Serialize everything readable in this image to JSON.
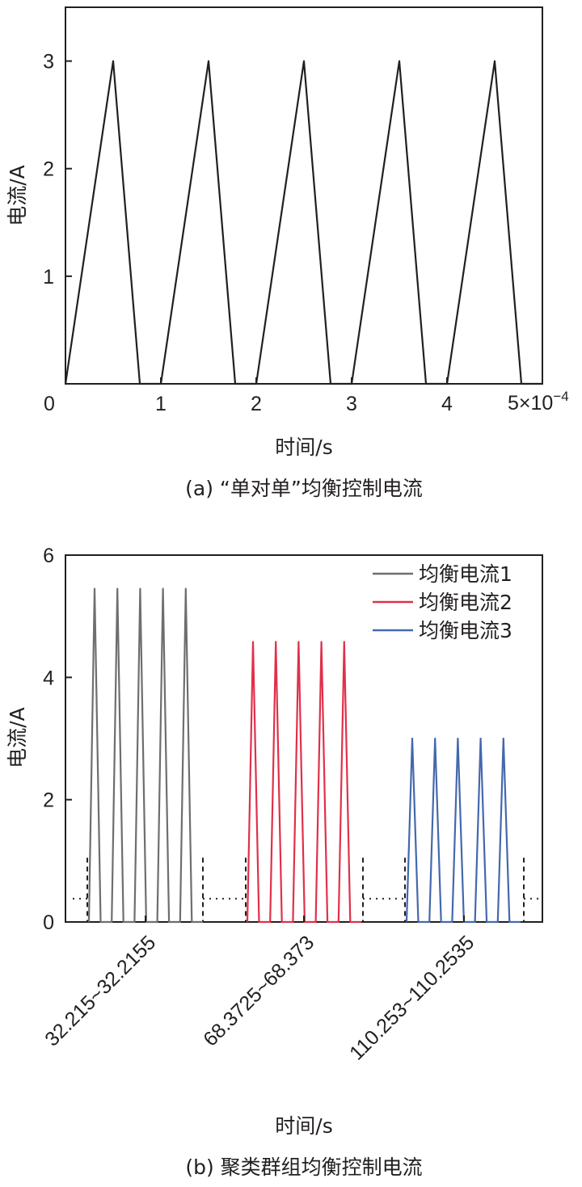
{
  "chart_data": [
    {
      "type": "line",
      "caption": "(a) “单对单”均衡控制电流",
      "xlabel": "时间/s",
      "ylabel": "电流/A",
      "xlim": [
        0,
        5
      ],
      "ylim": [
        0,
        3.5
      ],
      "x_ticks": [
        "0",
        "1",
        "2",
        "3",
        "4"
      ],
      "x_multiplier": "5×10",
      "x_multiplier_exp": "−4",
      "y_ticks": [
        1,
        2,
        3
      ],
      "grid": false,
      "series": [
        {
          "color": "#231f20",
          "points": [
            [
              0,
              0
            ],
            [
              0.5,
              3
            ],
            [
              0.78,
              0
            ],
            [
              1,
              0
            ],
            [
              1.5,
              3
            ],
            [
              1.78,
              0
            ],
            [
              2,
              0
            ],
            [
              2.5,
              3
            ],
            [
              2.78,
              0
            ],
            [
              3,
              0
            ],
            [
              3.5,
              3
            ],
            [
              3.78,
              0
            ],
            [
              4,
              0
            ],
            [
              4.5,
              3
            ],
            [
              4.78,
              0
            ],
            [
              5,
              0
            ]
          ]
        }
      ]
    },
    {
      "type": "line",
      "caption": "(b) 聚类群组均衡控制电流",
      "xlabel": "时间/s",
      "ylabel": "电流/A",
      "ylim": [
        0,
        6
      ],
      "y_ticks": [
        0,
        2,
        4,
        6
      ],
      "x_categories": [
        "32.215~32.2155",
        "68.3725~68.373",
        "110.253~110.2535"
      ],
      "legend_position": "top-right",
      "grid": false,
      "series": [
        {
          "name": "均衡电流1",
          "color": "#6d6e70",
          "segment": 0,
          "peak": 5.45,
          "pulses": 5
        },
        {
          "name": "均衡电流2",
          "color": "#e0304a",
          "segment": 1,
          "peak": 4.58,
          "pulses": 5
        },
        {
          "name": "均衡电流3",
          "color": "#4468ad",
          "segment": 2,
          "peak": 3.0,
          "pulses": 5
        }
      ]
    }
  ]
}
